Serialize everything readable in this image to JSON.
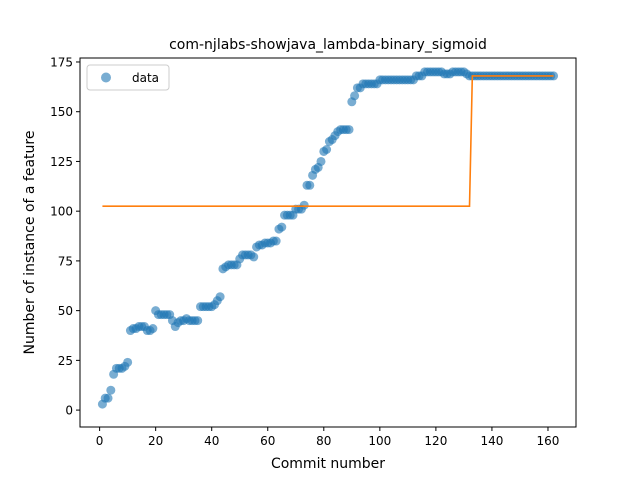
{
  "chart_data": {
    "type": "scatter",
    "title": "com-njlabs-showjava_lambda-binary_sigmoid",
    "xlabel": "Commit number",
    "ylabel": "Number of instance of a feature",
    "xlim": [
      -7,
      170
    ],
    "ylim": [
      -8.5,
      177
    ],
    "xticks": [
      0,
      20,
      40,
      60,
      80,
      100,
      120,
      140,
      160
    ],
    "yticks": [
      0,
      25,
      50,
      75,
      100,
      125,
      150,
      175
    ],
    "grid": false,
    "legend": {
      "position": "top-left",
      "entries": [
        "data"
      ]
    },
    "colors": {
      "data": "#1f77b4",
      "fit": "#ff7f0e"
    },
    "series": [
      {
        "name": "data",
        "kind": "scatter",
        "points": [
          [
            1,
            3
          ],
          [
            2,
            6
          ],
          [
            3,
            6
          ],
          [
            4,
            10
          ],
          [
            5,
            18
          ],
          [
            6,
            21
          ],
          [
            7,
            21
          ],
          [
            8,
            21
          ],
          [
            9,
            22
          ],
          [
            10,
            24
          ],
          [
            11,
            40
          ],
          [
            12,
            41
          ],
          [
            13,
            41
          ],
          [
            14,
            42
          ],
          [
            15,
            42
          ],
          [
            16,
            42
          ],
          [
            17,
            40
          ],
          [
            18,
            40
          ],
          [
            19,
            41
          ],
          [
            20,
            50
          ],
          [
            21,
            48
          ],
          [
            22,
            48
          ],
          [
            23,
            48
          ],
          [
            24,
            48
          ],
          [
            25,
            48
          ],
          [
            26,
            45
          ],
          [
            27,
            42
          ],
          [
            28,
            44
          ],
          [
            29,
            45
          ],
          [
            30,
            45
          ],
          [
            31,
            46
          ],
          [
            32,
            45
          ],
          [
            33,
            45
          ],
          [
            34,
            45
          ],
          [
            35,
            45
          ],
          [
            36,
            52
          ],
          [
            37,
            52
          ],
          [
            38,
            52
          ],
          [
            39,
            52
          ],
          [
            40,
            52
          ],
          [
            41,
            53
          ],
          [
            42,
            55
          ],
          [
            43,
            57
          ],
          [
            44,
            71
          ],
          [
            45,
            72
          ],
          [
            46,
            73
          ],
          [
            47,
            73
          ],
          [
            48,
            73
          ],
          [
            49,
            73
          ],
          [
            50,
            76
          ],
          [
            51,
            78
          ],
          [
            52,
            78
          ],
          [
            53,
            78
          ],
          [
            54,
            78
          ],
          [
            55,
            77
          ],
          [
            56,
            82
          ],
          [
            57,
            83
          ],
          [
            58,
            83
          ],
          [
            59,
            84
          ],
          [
            60,
            84
          ],
          [
            61,
            84
          ],
          [
            62,
            85
          ],
          [
            63,
            85
          ],
          [
            64,
            91
          ],
          [
            65,
            92
          ],
          [
            66,
            98
          ],
          [
            67,
            98
          ],
          [
            68,
            98
          ],
          [
            69,
            98
          ],
          [
            70,
            101
          ],
          [
            71,
            101
          ],
          [
            72,
            101
          ],
          [
            73,
            103
          ],
          [
            74,
            113
          ],
          [
            75,
            113
          ],
          [
            76,
            118
          ],
          [
            77,
            121
          ],
          [
            78,
            122
          ],
          [
            79,
            125
          ],
          [
            80,
            130
          ],
          [
            81,
            131
          ],
          [
            82,
            135
          ],
          [
            83,
            136
          ],
          [
            84,
            138
          ],
          [
            85,
            140
          ],
          [
            86,
            141
          ],
          [
            87,
            141
          ],
          [
            88,
            141
          ],
          [
            89,
            141
          ],
          [
            90,
            155
          ],
          [
            91,
            158
          ],
          [
            92,
            162
          ],
          [
            93,
            162
          ],
          [
            94,
            164
          ],
          [
            95,
            164
          ],
          [
            96,
            164
          ],
          [
            97,
            164
          ],
          [
            98,
            164
          ],
          [
            99,
            164
          ],
          [
            100,
            166
          ],
          [
            101,
            166
          ],
          [
            102,
            166
          ],
          [
            103,
            166
          ],
          [
            104,
            166
          ],
          [
            105,
            166
          ],
          [
            106,
            166
          ],
          [
            107,
            166
          ],
          [
            108,
            166
          ],
          [
            109,
            166
          ],
          [
            110,
            166
          ],
          [
            111,
            166
          ],
          [
            112,
            166
          ],
          [
            113,
            168
          ],
          [
            114,
            168
          ],
          [
            115,
            168
          ],
          [
            116,
            170
          ],
          [
            117,
            170
          ],
          [
            118,
            170
          ],
          [
            119,
            170
          ],
          [
            120,
            170
          ],
          [
            121,
            170
          ],
          [
            122,
            170
          ],
          [
            123,
            169
          ],
          [
            124,
            169
          ],
          [
            125,
            169
          ],
          [
            126,
            170
          ],
          [
            127,
            170
          ],
          [
            128,
            170
          ],
          [
            129,
            170
          ],
          [
            130,
            170
          ],
          [
            131,
            169
          ],
          [
            132,
            168
          ],
          [
            133,
            168
          ],
          [
            134,
            168
          ],
          [
            135,
            168
          ],
          [
            136,
            168
          ],
          [
            137,
            168
          ],
          [
            138,
            168
          ],
          [
            139,
            168
          ],
          [
            140,
            168
          ],
          [
            141,
            168
          ],
          [
            142,
            168
          ],
          [
            143,
            168
          ],
          [
            144,
            168
          ],
          [
            145,
            168
          ],
          [
            146,
            168
          ],
          [
            147,
            168
          ],
          [
            148,
            168
          ],
          [
            149,
            168
          ],
          [
            150,
            168
          ],
          [
            151,
            168
          ],
          [
            152,
            168
          ],
          [
            153,
            168
          ],
          [
            154,
            168
          ],
          [
            155,
            168
          ],
          [
            156,
            168
          ],
          [
            157,
            168
          ],
          [
            158,
            168
          ],
          [
            159,
            168
          ],
          [
            160,
            168
          ],
          [
            161,
            168
          ],
          [
            162,
            168
          ]
        ]
      },
      {
        "kind": "line",
        "points": [
          [
            1,
            102.5
          ],
          [
            132,
            102.5
          ],
          [
            133,
            168
          ],
          [
            162,
            168
          ]
        ]
      }
    ]
  }
}
